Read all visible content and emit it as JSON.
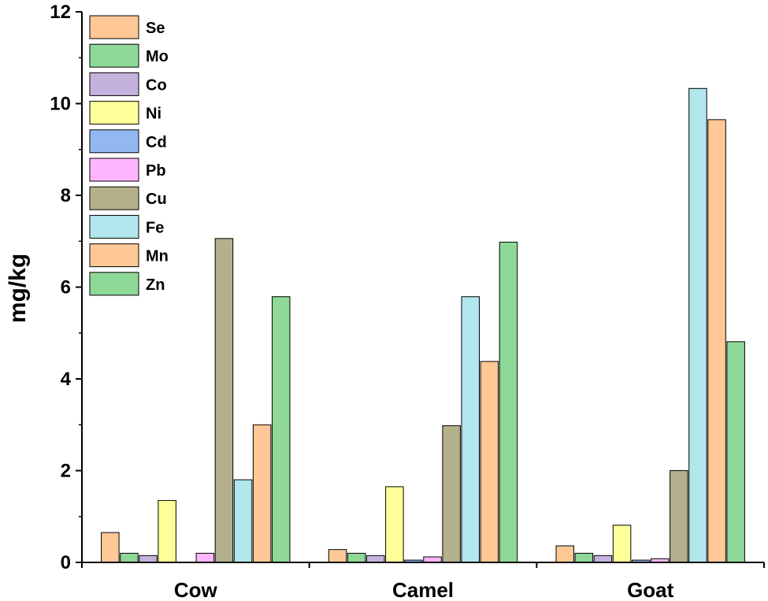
{
  "chart_data": {
    "type": "bar",
    "title": "",
    "xlabel": "",
    "ylabel": "mg/kg",
    "ylim": [
      0,
      12
    ],
    "yticks": [
      0,
      2,
      4,
      6,
      8,
      10,
      12
    ],
    "grid": false,
    "legend_position": "top-left",
    "categories": [
      "Cow",
      "Camel",
      "Goat"
    ],
    "series": [
      {
        "name": "Se",
        "color": "#FFC896",
        "values": [
          0.65,
          0.28,
          0.36
        ]
      },
      {
        "name": "Mo",
        "color": "#8ED898",
        "values": [
          0.2,
          0.2,
          0.2
        ]
      },
      {
        "name": "Co",
        "color": "#C4B2DC",
        "values": [
          0.15,
          0.15,
          0.15
        ]
      },
      {
        "name": "Ni",
        "color": "#FFFF9A",
        "values": [
          1.35,
          1.65,
          0.81
        ]
      },
      {
        "name": "Cd",
        "color": "#93B7F0",
        "values": [
          0.0,
          0.05,
          0.05
        ]
      },
      {
        "name": "Pb",
        "color": "#FFB6FF",
        "values": [
          0.2,
          0.12,
          0.08
        ]
      },
      {
        "name": "Cu",
        "color": "#B5B08C",
        "values": [
          7.06,
          2.98,
          2.0
        ]
      },
      {
        "name": "Fe",
        "color": "#B0E6EC",
        "values": [
          1.8,
          5.79,
          10.33
        ]
      },
      {
        "name": "Mn",
        "color": "#FFC896",
        "values": [
          3.0,
          4.38,
          9.65
        ]
      },
      {
        "name": "Zn",
        "color": "#8ED898",
        "values": [
          5.79,
          6.98,
          4.81
        ]
      }
    ]
  }
}
